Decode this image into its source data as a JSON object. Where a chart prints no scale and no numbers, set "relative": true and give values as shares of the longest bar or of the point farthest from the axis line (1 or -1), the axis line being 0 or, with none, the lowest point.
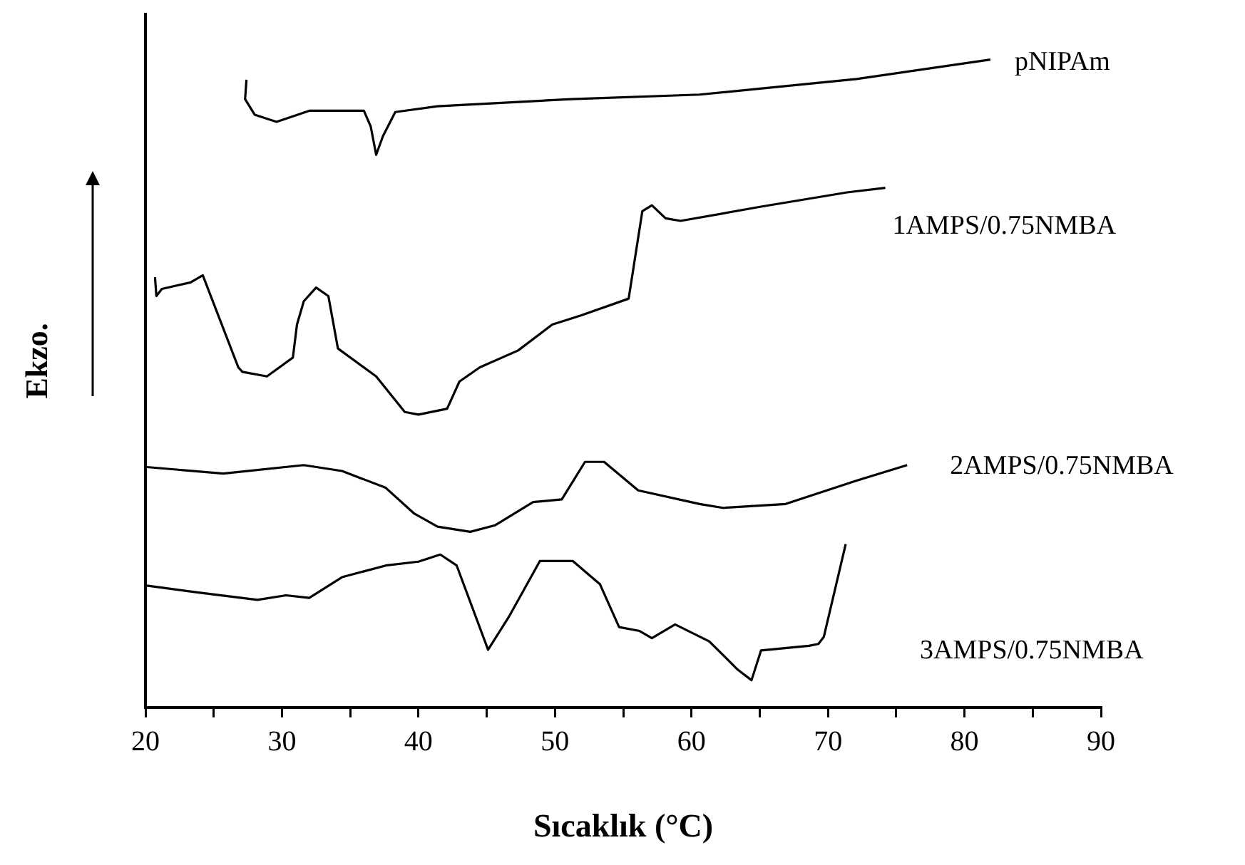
{
  "chart_data": {
    "type": "line",
    "relative": true,
    "xlabel": "Sıcaklık (°C)",
    "ylabel": "Ekzo.",
    "xlim": [
      20,
      90
    ],
    "xticks": [
      20,
      {
        "value": 25,
        "label": null
      },
      30,
      {
        "value": 35,
        "label": null
      },
      40,
      {
        "value": 45,
        "label": null
      },
      50,
      {
        "value": 55,
        "label": null
      },
      60,
      {
        "value": 65,
        "label": null
      },
      70,
      {
        "value": 75,
        "label": null
      },
      80,
      {
        "value": 85,
        "label": null
      },
      90
    ],
    "grid": false,
    "legend": false,
    "line_style": "solid",
    "series": [
      {
        "name": "pNIPAm",
        "color": "#000000",
        "x": [
          27.4,
          27.3,
          28.0,
          29.6,
          32.0,
          36.0,
          36.5,
          36.9,
          37.4,
          38.3,
          41.4,
          51.2,
          60.6,
          72.1,
          81.9
        ],
        "values": [
          0.969,
          0.939,
          0.915,
          0.904,
          0.921,
          0.921,
          0.897,
          0.853,
          0.882,
          0.919,
          0.928,
          0.939,
          0.946,
          0.97,
          1.0
        ]
      },
      {
        "name": "1AMPS/0.75NMBA",
        "color": "#000000",
        "x": [
          20.7,
          20.8,
          21.2,
          23.3,
          24.2,
          26.8,
          27.1,
          28.9,
          30.8,
          31.1,
          31.6,
          32.5,
          33.4,
          34.1,
          36.9,
          39.0,
          40.0,
          42.1,
          43.0,
          44.5,
          47.3,
          49.8,
          51.9,
          55.4,
          56.4,
          57.1,
          58.1,
          59.2,
          65.1,
          71.4,
          74.2
        ],
        "values": [
          0.664,
          0.635,
          0.646,
          0.656,
          0.667,
          0.525,
          0.518,
          0.511,
          0.54,
          0.591,
          0.627,
          0.648,
          0.635,
          0.554,
          0.511,
          0.456,
          0.452,
          0.461,
          0.503,
          0.525,
          0.551,
          0.591,
          0.605,
          0.631,
          0.766,
          0.775,
          0.755,
          0.751,
          0.773,
          0.795,
          0.802
        ]
      },
      {
        "name": "2AMPS/0.75NMBA",
        "color": "#000000",
        "x": [
          20.1,
          25.7,
          31.6,
          34.4,
          37.6,
          39.7,
          41.4,
          43.8,
          45.6,
          48.4,
          50.5,
          52.2,
          53.6,
          56.1,
          60.6,
          62.3,
          66.9,
          72.1,
          75.8
        ],
        "values": [
          0.371,
          0.361,
          0.374,
          0.365,
          0.339,
          0.299,
          0.279,
          0.271,
          0.281,
          0.317,
          0.321,
          0.379,
          0.379,
          0.335,
          0.314,
          0.308,
          0.314,
          0.35,
          0.374
        ]
      },
      {
        "name": "3AMPS/0.75NMBA",
        "color": "#000000",
        "x": [
          20.1,
          24.0,
          28.2,
          30.3,
          32.0,
          34.4,
          37.6,
          40.0,
          41.6,
          42.8,
          45.1,
          46.6,
          48.9,
          51.3,
          53.3,
          54.7,
          56.2,
          57.1,
          58.8,
          61.3,
          63.4,
          64.4,
          65.1,
          68.6,
          69.3,
          69.7,
          71.3
        ],
        "values": [
          0.188,
          0.177,
          0.166,
          0.173,
          0.169,
          0.201,
          0.219,
          0.225,
          0.236,
          0.219,
          0.089,
          0.139,
          0.226,
          0.226,
          0.19,
          0.124,
          0.118,
          0.107,
          0.128,
          0.102,
          0.058,
          0.042,
          0.088,
          0.095,
          0.098,
          0.109,
          0.252
        ]
      }
    ]
  }
}
